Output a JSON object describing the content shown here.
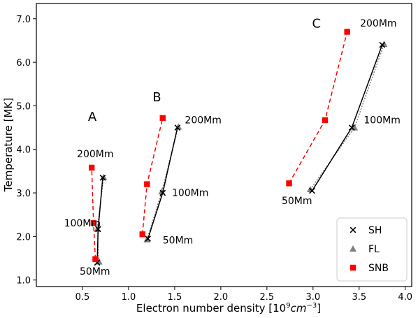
{
  "chart_data": {
    "type": "line",
    "title": "",
    "xlabel": "Electron number density [10",
    "xlabel_sup": "9",
    "xlabel_unit": "cm",
    "xlabel_unit_sup": "−3",
    "xlabel_close": "]",
    "ylabel": "Temperature [MK]",
    "xlim": [
      0.0,
      4.07
    ],
    "ylim": [
      0.85,
      7.35
    ],
    "xticks": [
      "0.5",
      "1.0",
      "1.5",
      "2.0",
      "2.5",
      "3.0",
      "3.5",
      "4.0"
    ],
    "xtick_values": [
      0.5,
      1.0,
      1.5,
      2.0,
      2.5,
      3.0,
      3.5,
      4.0
    ],
    "yticks": [
      "1.0",
      "2.0",
      "3.0",
      "4.0",
      "5.0",
      "6.0",
      "7.0"
    ],
    "ytick_values": [
      1.0,
      2.0,
      3.0,
      4.0,
      5.0,
      6.0,
      7.0
    ],
    "grid": false,
    "legend_position": "bottom-right",
    "series": [
      {
        "name": "SH",
        "marker": "x",
        "color": "#000000",
        "linestyle": "solid",
        "groups": [
          [
            {
              "x": 0.66,
              "y": 1.4
            },
            {
              "x": 0.67,
              "y": 2.17
            },
            {
              "x": 0.72,
              "y": 3.35
            }
          ],
          [
            {
              "x": 1.21,
              "y": 1.95
            },
            {
              "x": 1.37,
              "y": 3.0
            },
            {
              "x": 1.53,
              "y": 4.5
            }
          ],
          [
            {
              "x": 2.99,
              "y": 3.05
            },
            {
              "x": 3.42,
              "y": 4.5
            },
            {
              "x": 3.75,
              "y": 6.4
            }
          ]
        ]
      },
      {
        "name": "FL",
        "marker": "triangle",
        "color": "#808080",
        "linestyle": "dotted",
        "groups": [
          [
            {
              "x": 0.68,
              "y": 1.42
            },
            {
              "x": 0.66,
              "y": 2.17
            },
            {
              "x": 0.73,
              "y": 3.36
            }
          ],
          [
            {
              "x": 1.2,
              "y": 1.93
            },
            {
              "x": 1.36,
              "y": 3.03
            },
            {
              "x": 1.54,
              "y": 4.52
            }
          ],
          [
            {
              "x": 2.97,
              "y": 3.08
            },
            {
              "x": 3.45,
              "y": 4.5
            },
            {
              "x": 3.77,
              "y": 6.42
            }
          ]
        ]
      },
      {
        "name": "SNB",
        "marker": "square",
        "color": "#ff0000",
        "linestyle": "dashed",
        "groups": [
          [
            {
              "x": 0.64,
              "y": 1.48
            },
            {
              "x": 0.62,
              "y": 2.31
            },
            {
              "x": 0.6,
              "y": 3.58
            }
          ],
          [
            {
              "x": 1.15,
              "y": 2.05
            },
            {
              "x": 1.2,
              "y": 3.2
            },
            {
              "x": 1.37,
              "y": 4.72
            }
          ],
          [
            {
              "x": 2.74,
              "y": 3.22
            },
            {
              "x": 3.13,
              "y": 4.67
            },
            {
              "x": 3.37,
              "y": 6.7
            }
          ]
        ]
      }
    ],
    "annotations": [
      {
        "text": "A",
        "x": 0.56,
        "y": 4.65,
        "size": "large"
      },
      {
        "text": "B",
        "x": 1.26,
        "y": 5.1,
        "size": "large"
      },
      {
        "text": "C",
        "x": 2.99,
        "y": 6.8,
        "size": "large"
      },
      {
        "text": "200Mm",
        "x": 0.44,
        "y": 3.82,
        "size": "normal"
      },
      {
        "text": "100Mm",
        "x": 0.3,
        "y": 2.23,
        "size": "normal"
      },
      {
        "text": "50Mm",
        "x": 0.47,
        "y": 1.12,
        "size": "normal"
      },
      {
        "text": "200Mm",
        "x": 1.61,
        "y": 4.6,
        "size": "normal"
      },
      {
        "text": "100Mm",
        "x": 1.47,
        "y": 2.93,
        "size": "normal"
      },
      {
        "text": "50Mm",
        "x": 1.37,
        "y": 1.84,
        "size": "normal"
      },
      {
        "text": "200Mm",
        "x": 3.51,
        "y": 6.82,
        "size": "normal"
      },
      {
        "text": "100Mm",
        "x": 3.55,
        "y": 4.6,
        "size": "normal"
      },
      {
        "text": "50Mm",
        "x": 2.66,
        "y": 2.74,
        "size": "normal"
      }
    ]
  }
}
